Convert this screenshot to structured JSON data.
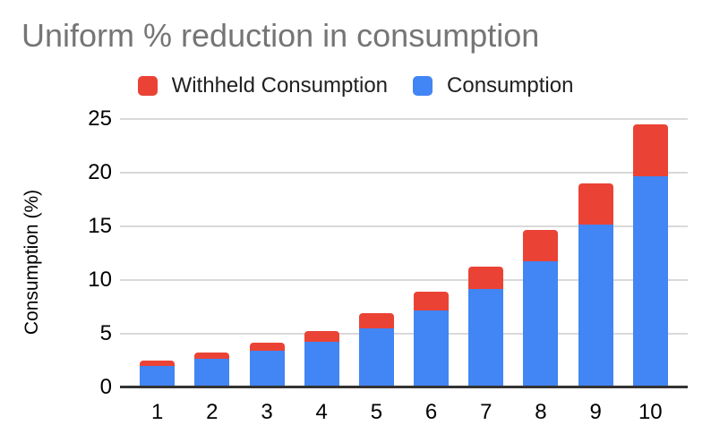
{
  "title": "Uniform % reduction in consumption",
  "colors": {
    "withheld": "#ea4335",
    "consumption": "#4285f4",
    "title_text": "#757575",
    "gridline": "#d9d9d9",
    "axis_line": "#333333",
    "label_text": "#000000"
  },
  "legend": {
    "entries": [
      {
        "label": "Withheld Consumption",
        "color": "#ea4335"
      },
      {
        "label": "Consumption",
        "color": "#4285f4"
      }
    ]
  },
  "y_axis": {
    "title": "Consumption (%)",
    "tick_labels": [
      "0",
      "5",
      "10",
      "15",
      "20",
      "25"
    ]
  },
  "x_axis": {
    "tick_labels": [
      "1",
      "2",
      "3",
      "4",
      "5",
      "6",
      "7",
      "8",
      "9",
      "10"
    ]
  },
  "chart_data": {
    "type": "bar",
    "stacked": true,
    "title": "Uniform % reduction in consumption",
    "xlabel": "",
    "ylabel": "Consumption (%)",
    "categories": [
      "1",
      "2",
      "3",
      "4",
      "5",
      "6",
      "7",
      "8",
      "9",
      "10"
    ],
    "series": [
      {
        "name": "Consumption",
        "color": "#4285f4",
        "values": [
          1.9,
          2.6,
          3.3,
          4.2,
          5.4,
          7.1,
          9.1,
          11.7,
          15.1,
          19.6
        ]
      },
      {
        "name": "Withheld Consumption",
        "color": "#ea4335",
        "values": [
          0.5,
          0.6,
          0.8,
          1.0,
          1.4,
          1.7,
          2.1,
          2.9,
          3.8,
          4.8
        ]
      }
    ],
    "stack_totals": [
      2.4,
      3.2,
      4.1,
      5.2,
      6.8,
      8.8,
      11.2,
      14.6,
      18.9,
      24.4
    ],
    "ylim": [
      0,
      25
    ],
    "yticks": [
      0,
      5,
      10,
      15,
      20,
      25
    ],
    "grid": true,
    "legend_position": "top"
  }
}
